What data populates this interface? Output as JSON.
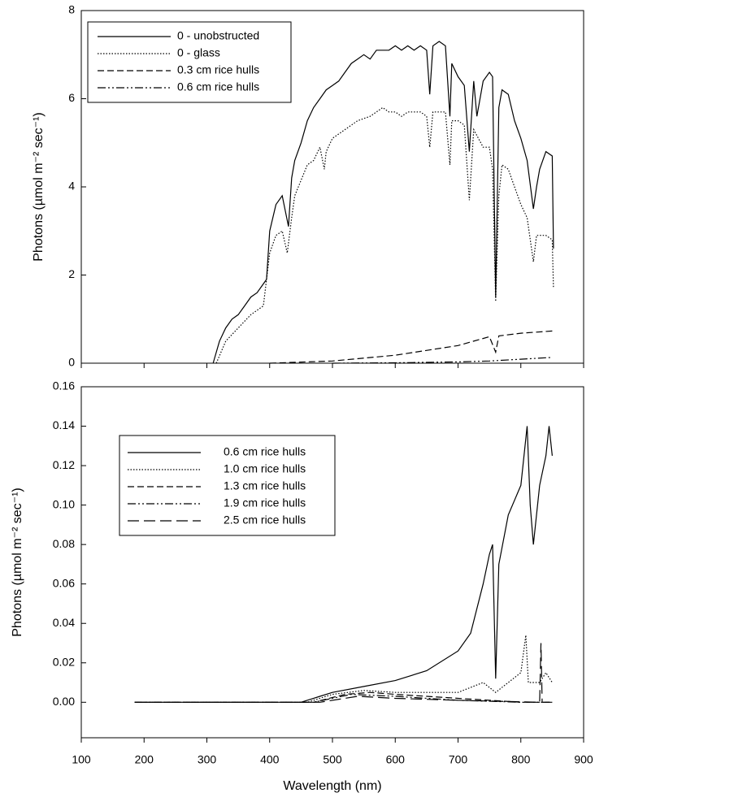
{
  "chart_data": [
    {
      "type": "line",
      "ylabel": "Photons (µmol m⁻² sec⁻¹)",
      "xlim": [
        100,
        900
      ],
      "xticks": [
        100,
        200,
        300,
        400,
        500,
        600,
        700,
        800,
        900
      ],
      "ylim": [
        0,
        8
      ],
      "yticks": [
        0,
        2,
        4,
        6,
        8
      ],
      "series": [
        {
          "name": "0 - unobstructed",
          "color": "#000000",
          "dash": "solid",
          "x": [
            310,
            320,
            330,
            340,
            350,
            360,
            370,
            380,
            390,
            395,
            400,
            410,
            420,
            430,
            435,
            440,
            450,
            460,
            470,
            480,
            490,
            500,
            510,
            520,
            530,
            540,
            550,
            560,
            570,
            580,
            590,
            600,
            610,
            620,
            630,
            640,
            650,
            655,
            660,
            670,
            680,
            687,
            690,
            700,
            710,
            718,
            725,
            730,
            740,
            750,
            755,
            760,
            765,
            770,
            780,
            790,
            800,
            810,
            820,
            825,
            830,
            840,
            850,
            852
          ],
          "values": [
            0,
            0.5,
            0.8,
            1.0,
            1.1,
            1.3,
            1.5,
            1.6,
            1.8,
            1.9,
            3.0,
            3.6,
            3.8,
            3.1,
            4.2,
            4.6,
            5.0,
            5.5,
            5.8,
            6.0,
            6.2,
            6.3,
            6.4,
            6.6,
            6.8,
            6.9,
            7.0,
            6.9,
            7.1,
            7.1,
            7.1,
            7.2,
            7.1,
            7.2,
            7.1,
            7.2,
            7.1,
            6.1,
            7.2,
            7.3,
            7.2,
            5.6,
            6.8,
            6.5,
            6.3,
            4.8,
            6.4,
            5.6,
            6.4,
            6.6,
            6.5,
            1.5,
            5.8,
            6.2,
            6.1,
            5.5,
            5.1,
            4.6,
            3.5,
            4.0,
            4.4,
            4.8,
            4.7,
            2.6
          ]
        },
        {
          "name": "0 - glass",
          "color": "#000000",
          "dash": "dotted",
          "x": [
            315,
            330,
            350,
            370,
            390,
            400,
            410,
            420,
            428,
            435,
            440,
            460,
            470,
            480,
            487,
            490,
            500,
            520,
            540,
            560,
            580,
            590,
            600,
            610,
            620,
            640,
            650,
            655,
            660,
            680,
            687,
            690,
            700,
            710,
            718,
            725,
            740,
            750,
            755,
            760,
            765,
            770,
            780,
            790,
            800,
            810,
            820,
            825,
            840,
            850,
            852
          ],
          "values": [
            0,
            0.5,
            0.8,
            1.1,
            1.3,
            2.5,
            2.9,
            3.0,
            2.5,
            3.3,
            3.8,
            4.5,
            4.6,
            4.9,
            4.4,
            4.8,
            5.1,
            5.3,
            5.5,
            5.6,
            5.8,
            5.7,
            5.7,
            5.6,
            5.7,
            5.7,
            5.6,
            4.9,
            5.7,
            5.7,
            4.5,
            5.5,
            5.5,
            5.4,
            3.7,
            5.3,
            4.9,
            4.9,
            4.4,
            1.4,
            3.8,
            4.5,
            4.4,
            4.0,
            3.6,
            3.3,
            2.3,
            2.9,
            2.9,
            2.8,
            1.7
          ]
        },
        {
          "name": "0.3 cm rice hulls",
          "color": "#000000",
          "dash": "dashed",
          "x": [
            400,
            500,
            600,
            700,
            750,
            760,
            765,
            800,
            850
          ],
          "values": [
            0,
            0.05,
            0.18,
            0.4,
            0.6,
            0.25,
            0.62,
            0.68,
            0.73
          ]
        },
        {
          "name": "0.6 cm rice hulls",
          "color": "#000000",
          "dash": "dashdotdot",
          "x": [
            500,
            600,
            700,
            750,
            800,
            850
          ],
          "values": [
            0,
            0.01,
            0.03,
            0.05,
            0.09,
            0.13
          ]
        }
      ]
    },
    {
      "type": "line",
      "xlabel": "Wavelength (nm)",
      "ylabel": "Photons (µmol m⁻² sec⁻¹)",
      "xlim": [
        100,
        900
      ],
      "xticks": [
        100,
        200,
        300,
        400,
        500,
        600,
        700,
        800,
        900
      ],
      "ylim": [
        -0.018,
        0.16
      ],
      "yticks": [
        {
          "value": 0,
          "label": "0.00"
        },
        0.02,
        0.04,
        0.06,
        0.08,
        {
          "value": 0.1,
          "label": "0.10"
        },
        0.12,
        0.14,
        0.16
      ],
      "series": [
        {
          "name": "0.6 cm rice hulls",
          "color": "#000000",
          "dash": "solid",
          "x": [
            185,
            450,
            480,
            500,
            550,
            600,
            650,
            700,
            720,
            740,
            750,
            755,
            760,
            765,
            780,
            800,
            810,
            815,
            820,
            830,
            840,
            845,
            850
          ],
          "values": [
            0,
            0,
            0.003,
            0.005,
            0.008,
            0.011,
            0.016,
            0.026,
            0.035,
            0.06,
            0.075,
            0.08,
            0.012,
            0.07,
            0.095,
            0.11,
            0.14,
            0.1,
            0.08,
            0.11,
            0.125,
            0.14,
            0.125
          ]
        },
        {
          "name": "1.0 cm rice hulls",
          "color": "#000000",
          "dash": "dotted",
          "x": [
            185,
            460,
            500,
            550,
            600,
            700,
            740,
            760,
            780,
            800,
            808,
            812,
            830,
            840,
            850
          ],
          "values": [
            0,
            0,
            0.004,
            0.006,
            0.005,
            0.005,
            0.01,
            0.005,
            0.01,
            0.015,
            0.034,
            0.01,
            0.01,
            0.015,
            0.01
          ]
        },
        {
          "name": "1.3 cm rice hulls",
          "color": "#000000",
          "dash": "dashed",
          "x": [
            185,
            470,
            520,
            560,
            600,
            650,
            700,
            750,
            800,
            850
          ],
          "values": [
            0,
            0,
            0.004,
            0.005,
            0.004,
            0.003,
            0.002,
            0.001,
            0,
            0
          ]
        },
        {
          "name": "1.9 cm rice hulls",
          "color": "#000000",
          "dash": "dashdotdot",
          "x": [
            185,
            470,
            530,
            600,
            700,
            800,
            850
          ],
          "values": [
            0,
            0,
            0.004,
            0.003,
            0.001,
            0,
            0
          ]
        },
        {
          "name": "2.5 cm rice hulls",
          "color": "#000000",
          "dash": "longdash",
          "x": [
            185,
            480,
            540,
            600,
            700,
            830,
            832,
            834,
            850
          ],
          "values": [
            0,
            0,
            0.003,
            0.002,
            0.001,
            0,
            0.03,
            0,
            0
          ]
        }
      ]
    }
  ]
}
